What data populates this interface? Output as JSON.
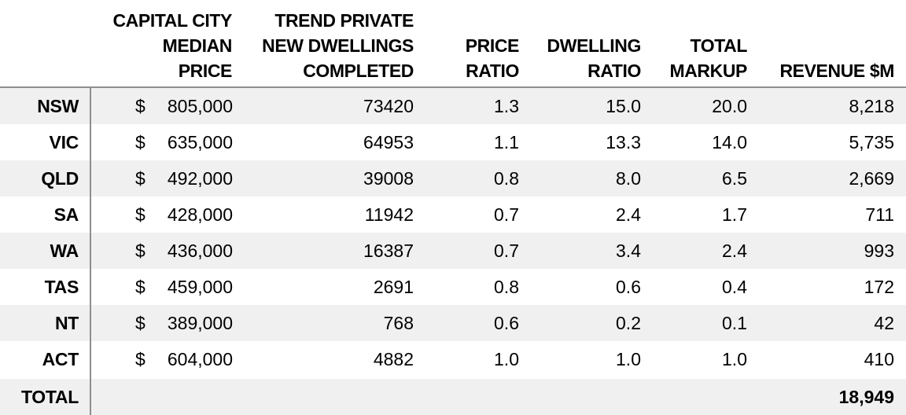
{
  "headers": {
    "median_price": [
      "CAPITAL CITY",
      "MEDIAN",
      "PRICE"
    ],
    "dwellings": [
      "TREND PRIVATE",
      "NEW DWELLINGS",
      "COMPLETED"
    ],
    "price_ratio": [
      "PRICE",
      "RATIO"
    ],
    "dwelling_ratio": [
      "DWELLING",
      "RATIO"
    ],
    "total_markup": [
      "TOTAL",
      "MARKUP"
    ],
    "revenue": [
      "REVENUE $M"
    ]
  },
  "currency_symbol": "$",
  "rows": [
    {
      "label": "NSW",
      "price": "805,000",
      "dwellings": "73420",
      "price_ratio": "1.3",
      "dwelling_ratio": "15.0",
      "markup": "20.0",
      "revenue": "8,218"
    },
    {
      "label": "VIC",
      "price": "635,000",
      "dwellings": "64953",
      "price_ratio": "1.1",
      "dwelling_ratio": "13.3",
      "markup": "14.0",
      "revenue": "5,735"
    },
    {
      "label": "QLD",
      "price": "492,000",
      "dwellings": "39008",
      "price_ratio": "0.8",
      "dwelling_ratio": "8.0",
      "markup": "6.5",
      "revenue": "2,669"
    },
    {
      "label": "SA",
      "price": "428,000",
      "dwellings": "11942",
      "price_ratio": "0.7",
      "dwelling_ratio": "2.4",
      "markup": "1.7",
      "revenue": "711"
    },
    {
      "label": "WA",
      "price": "436,000",
      "dwellings": "16387",
      "price_ratio": "0.7",
      "dwelling_ratio": "3.4",
      "markup": "2.4",
      "revenue": "993"
    },
    {
      "label": "TAS",
      "price": "459,000",
      "dwellings": "2691",
      "price_ratio": "0.8",
      "dwelling_ratio": "0.6",
      "markup": "0.4",
      "revenue": "172"
    },
    {
      "label": "NT",
      "price": "389,000",
      "dwellings": "768",
      "price_ratio": "0.6",
      "dwelling_ratio": "0.2",
      "markup": "0.1",
      "revenue": "42"
    },
    {
      "label": "ACT",
      "price": "604,000",
      "dwellings": "4882",
      "price_ratio": "1.0",
      "dwelling_ratio": "1.0",
      "markup": "1.0",
      "revenue": "410"
    }
  ],
  "total": {
    "label": "TOTAL",
    "revenue": "18,949"
  },
  "colors": {
    "shade": "#f0f0f0",
    "rule": "#8e8e8e"
  }
}
